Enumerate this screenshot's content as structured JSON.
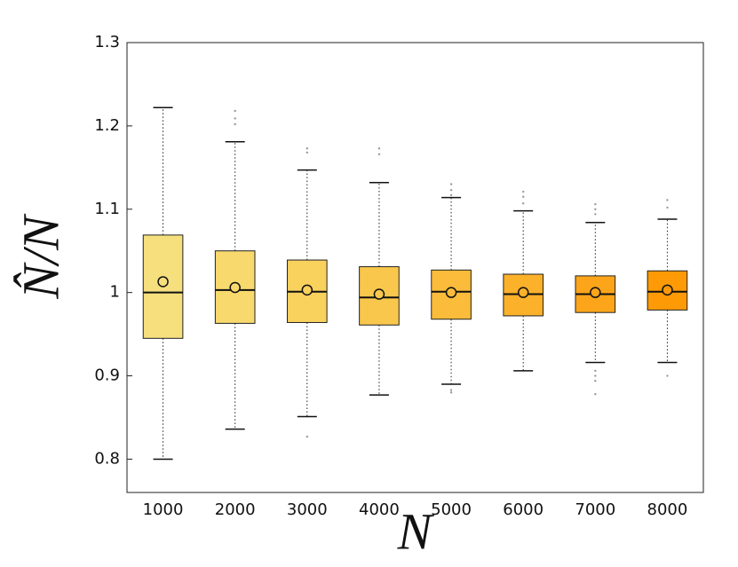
{
  "chart_data": {
    "type": "box",
    "x_label": "N",
    "y_label": "N̂/N",
    "categories": [
      "1000",
      "2000",
      "3000",
      "4000",
      "5000",
      "6000",
      "7000",
      "8000"
    ],
    "ylim": [
      0.76,
      1.3
    ],
    "yticks": [
      0.8,
      0.9,
      1,
      1.1,
      1.2,
      1.3
    ],
    "boxes": [
      {
        "whislo": 0.8,
        "q1": 0.945,
        "med": 1.0,
        "q3": 1.069,
        "whishi": 1.222,
        "mean": 1.013,
        "outliers": [],
        "color": "#f6e07e"
      },
      {
        "whislo": 0.836,
        "q1": 0.963,
        "med": 1.003,
        "q3": 1.05,
        "whishi": 1.181,
        "mean": 1.006,
        "outliers": [
          1.218,
          1.209,
          1.202
        ],
        "color": "#f8d96d"
      },
      {
        "whislo": 0.851,
        "q1": 0.964,
        "med": 1.001,
        "q3": 1.039,
        "whishi": 1.147,
        "mean": 1.003,
        "outliers": [
          1.173,
          1.168,
          0.827
        ],
        "color": "#f9d15d"
      },
      {
        "whislo": 0.877,
        "q1": 0.961,
        "med": 0.994,
        "q3": 1.031,
        "whishi": 1.132,
        "mean": 0.998,
        "outliers": [
          1.173,
          1.166
        ],
        "color": "#f9c74c"
      },
      {
        "whislo": 0.89,
        "q1": 0.968,
        "med": 1.001,
        "q3": 1.027,
        "whishi": 1.114,
        "mean": 1.0,
        "outliers": [
          1.13,
          1.123,
          1.117,
          0.883,
          0.88
        ],
        "color": "#fabc3a"
      },
      {
        "whislo": 0.906,
        "q1": 0.972,
        "med": 0.998,
        "q3": 1.022,
        "whishi": 1.098,
        "mean": 1.0,
        "outliers": [
          1.121,
          1.115,
          1.107
        ],
        "color": "#fbb12a"
      },
      {
        "whislo": 0.916,
        "q1": 0.976,
        "med": 0.998,
        "q3": 1.02,
        "whishi": 1.084,
        "mean": 1.0,
        "outliers": [
          1.106,
          1.1,
          1.094,
          0.906,
          0.9,
          0.894,
          0.878
        ],
        "color": "#fca51a"
      },
      {
        "whislo": 0.916,
        "q1": 0.979,
        "med": 1.001,
        "q3": 1.026,
        "whishi": 1.088,
        "mean": 1.003,
        "outliers": [
          1.111,
          1.102,
          0.9
        ],
        "color": "#fd9a06"
      }
    ]
  }
}
